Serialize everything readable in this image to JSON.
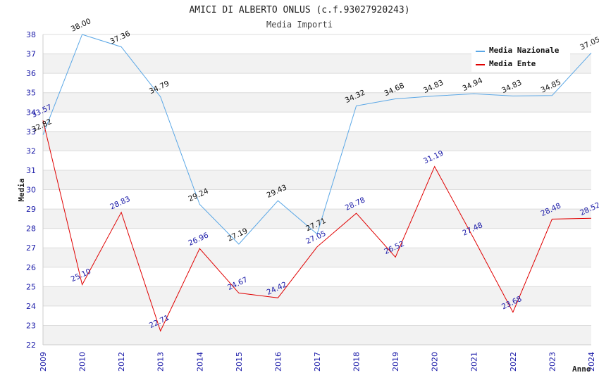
{
  "chart_data": {
    "type": "line",
    "title": "AMICI DI ALBERTO ONLUS (c.f.93027920243)",
    "subtitle": "Media Importi",
    "xlabel": "Anno",
    "ylabel": "Media",
    "ylim": [
      22,
      38
    ],
    "yticks": [
      "22",
      "23",
      "24",
      "25",
      "26",
      "27",
      "28",
      "29",
      "30",
      "31",
      "32",
      "33",
      "34",
      "35",
      "36",
      "37",
      "38"
    ],
    "categories": [
      "2009",
      "2010",
      "2012",
      "2013",
      "2014",
      "2015",
      "2016",
      "2017",
      "2018",
      "2019",
      "2020",
      "2021",
      "2022",
      "2023",
      "2024"
    ],
    "series": [
      {
        "name": "Media Nazionale",
        "color": "#5aa7e6",
        "values": [
          32.82,
          38.0,
          37.36,
          34.79,
          29.24,
          27.19,
          29.43,
          27.71,
          34.32,
          34.68,
          34.83,
          34.94,
          34.83,
          34.85,
          37.05
        ],
        "labels": [
          "32.82",
          "38.00",
          "37.36",
          "34.79",
          "29.24",
          "27.19",
          "29.43",
          "27.71",
          "34.32",
          "34.68",
          "34.83",
          "34.94",
          "34.83",
          "34.85",
          "37.05"
        ]
      },
      {
        "name": "Media Ente",
        "color": "#e00000",
        "values": [
          33.57,
          25.1,
          28.83,
          22.71,
          26.96,
          24.67,
          24.42,
          27.05,
          28.78,
          26.52,
          31.19,
          27.48,
          23.68,
          28.48,
          28.52
        ],
        "labels": [
          "33.57",
          "25.10",
          "28.83",
          "22.71",
          "26.96",
          "24.67",
          "24.42",
          "27.05",
          "28.78",
          "26.52",
          "31.19",
          "27.48",
          "23.68",
          "28.48",
          "28.52"
        ]
      }
    ],
    "grid": true,
    "legend": "top-right"
  }
}
